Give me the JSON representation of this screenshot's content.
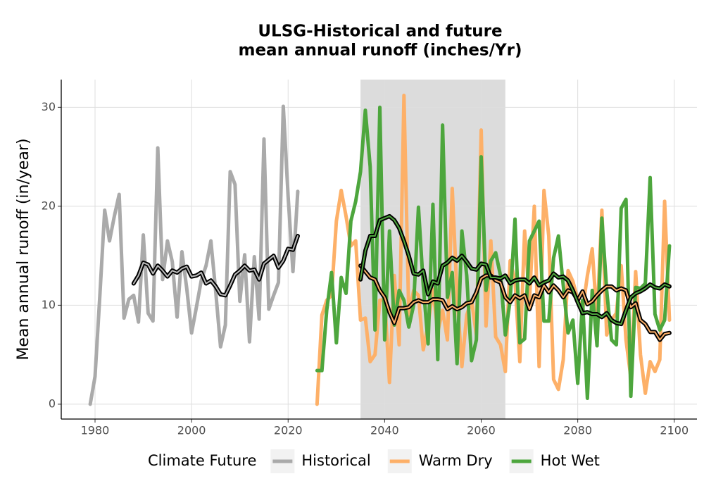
{
  "chart_data": {
    "type": "line",
    "title": "ULSG-Historical and future",
    "subtitle": "mean annual runoff (inches/Yr)",
    "y_label": "Mean annual runoff (in/year)",
    "legend_title": "Climate Future",
    "legend_position": "bottom",
    "grid": true,
    "xlim": [
      1973,
      2104.7
    ],
    "ylim": [
      -1.5,
      32.8
    ],
    "xticks": [
      1980,
      2000,
      2020,
      2040,
      2060,
      2080,
      2100
    ],
    "yticks": [
      0,
      10,
      20,
      30
    ],
    "shaded_span": [
      2035,
      2065
    ],
    "series": [
      {
        "name": "Historical",
        "color": "#aaaaaa",
        "x": [
          1979,
          1980,
          1981,
          1982,
          1983,
          1984,
          1985,
          1986,
          1987,
          1988,
          1989,
          1990,
          1991,
          1992,
          1993,
          1994,
          1995,
          1996,
          1997,
          1998,
          1999,
          2000,
          2001,
          2002,
          2003,
          2004,
          2005,
          2006,
          2007,
          2008,
          2009,
          2010,
          2011,
          2012,
          2013,
          2014,
          2015,
          2016,
          2017,
          2018,
          2019,
          2020,
          2021,
          2022
        ],
        "values": [
          0,
          2.8,
          11,
          19.6,
          16.5,
          19,
          21.2,
          8.7,
          10.6,
          11,
          8.3,
          17.1,
          9.2,
          8.4,
          25.9,
          12.6,
          16.5,
          14.4,
          8.8,
          15.4,
          11.7,
          7.2,
          9.8,
          12.5,
          14,
          16.5,
          11.4,
          5.8,
          8,
          23.5,
          22.2,
          10.4,
          15.1,
          6.3,
          14.9,
          8.6,
          26.8,
          9.6,
          11,
          12.3,
          30.1,
          21,
          13.4,
          21.5
        ]
      },
      {
        "name": "Warm Dry",
        "color": "#fdb068",
        "x": [
          2026,
          2027,
          2028,
          2029,
          2030,
          2031,
          2032,
          2033,
          2034,
          2035,
          2036,
          2037,
          2038,
          2039,
          2040,
          2041,
          2042,
          2043,
          2044,
          2045,
          2046,
          2047,
          2048,
          2049,
          2050,
          2051,
          2052,
          2053,
          2054,
          2055,
          2056,
          2057,
          2058,
          2059,
          2060,
          2061,
          2062,
          2063,
          2064,
          2065,
          2066,
          2067,
          2068,
          2069,
          2070,
          2071,
          2072,
          2073,
          2074,
          2075,
          2076,
          2077,
          2078,
          2079,
          2080,
          2081,
          2082,
          2083,
          2084,
          2085,
          2086,
          2087,
          2088,
          2089,
          2090,
          2091,
          2092,
          2093,
          2094,
          2095,
          2096,
          2097,
          2098,
          2099
        ],
        "values": [
          0,
          9,
          10.5,
          11,
          18.5,
          21.6,
          19,
          16,
          16.5,
          8.5,
          8.7,
          4.3,
          5,
          10.5,
          10.6,
          2.2,
          13,
          6,
          31.2,
          9,
          11.5,
          11,
          5.5,
          8,
          11.6,
          7.3,
          9.5,
          6.5,
          21.8,
          11,
          3.8,
          9,
          10.5,
          7,
          27.7,
          7.9,
          16.5,
          6.8,
          6,
          3.3,
          14.5,
          12.5,
          4.3,
          17.5,
          10.5,
          20,
          3.8,
          21.6,
          17,
          2.5,
          1.5,
          4.5,
          13.5,
          12.4,
          10.6,
          9.5,
          13,
          15.7,
          8.5,
          19.6,
          7,
          8.5,
          9.2,
          14,
          6.5,
          2.7,
          13.4,
          5,
          1.1,
          4.3,
          3.3,
          4.5,
          20.5,
          8.5
        ]
      },
      {
        "name": "Hot Wet",
        "color": "#4da63d",
        "x": [
          2026,
          2027,
          2028,
          2029,
          2030,
          2031,
          2032,
          2033,
          2034,
          2035,
          2036,
          2037,
          2038,
          2039,
          2040,
          2041,
          2042,
          2043,
          2044,
          2045,
          2046,
          2047,
          2048,
          2049,
          2050,
          2051,
          2052,
          2053,
          2054,
          2055,
          2056,
          2057,
          2058,
          2059,
          2060,
          2061,
          2062,
          2063,
          2064,
          2065,
          2066,
          2067,
          2068,
          2069,
          2070,
          2071,
          2072,
          2073,
          2074,
          2075,
          2076,
          2077,
          2078,
          2079,
          2080,
          2081,
          2082,
          2083,
          2084,
          2085,
          2086,
          2087,
          2088,
          2089,
          2090,
          2091,
          2092,
          2093,
          2094,
          2095,
          2096,
          2097,
          2098,
          2099
        ],
        "values": [
          3.4,
          3.4,
          9.5,
          13.3,
          6.2,
          12.8,
          11.2,
          18.5,
          20.5,
          23.5,
          29.7,
          24,
          7.5,
          30,
          6.5,
          17.5,
          8,
          11.5,
          10.5,
          7.8,
          10,
          19.9,
          12,
          6.1,
          20.2,
          4.5,
          28.2,
          10.8,
          13.3,
          4.1,
          17.5,
          13,
          4.4,
          6.5,
          25,
          11.5,
          14.5,
          15.3,
          13,
          7,
          10.5,
          18.7,
          6.2,
          6.6,
          16.5,
          17.5,
          18.5,
          8.4,
          8.4,
          14.8,
          17,
          12,
          7.2,
          8.5,
          2.1,
          10.5,
          0.6,
          11.5,
          5.9,
          18.8,
          11.5,
          6.5,
          6,
          19.8,
          20.7,
          0.8,
          11.8,
          11.7,
          12.2,
          22.9,
          9.1,
          7.5,
          8.5,
          16
        ]
      },
      {
        "color": "#000000",
        "inner_color": "#bbbbbb",
        "x": [
          1988,
          1989,
          1990,
          1991,
          1992,
          1993,
          1994,
          1995,
          1996,
          1997,
          1998,
          1999,
          2000,
          2001,
          2002,
          2003,
          2004,
          2005,
          2006,
          2007,
          2008,
          2009,
          2010,
          2011,
          2012,
          2013,
          2014,
          2015,
          2016,
          2017,
          2018,
          2019,
          2020,
          2021,
          2022
        ],
        "values": [
          12.2,
          13,
          14.3,
          14.1,
          13.2,
          14,
          13.5,
          12.9,
          13.5,
          13.3,
          13.7,
          13.9,
          12.9,
          13,
          13.3,
          12.2,
          12.5,
          11.9,
          11.1,
          11,
          12,
          13.1,
          13.5,
          14,
          13.5,
          13.6,
          12.6,
          14.2,
          14.6,
          15,
          13.8,
          14.5,
          15.7,
          15.6,
          17
        ]
      },
      {
        "color": "#000000",
        "inner_color": "#fdb068",
        "x": [
          2035,
          2036,
          2037,
          2038,
          2039,
          2040,
          2041,
          2042,
          2043,
          2044,
          2045,
          2046,
          2047,
          2048,
          2049,
          2050,
          2051,
          2052,
          2053,
          2054,
          2055,
          2056,
          2057,
          2058,
          2059,
          2060,
          2061,
          2062,
          2063,
          2064,
          2065,
          2066,
          2067,
          2068,
          2069,
          2070,
          2071,
          2072,
          2073,
          2074,
          2075,
          2076,
          2077,
          2078,
          2079,
          2080,
          2081,
          2082,
          2083,
          2084,
          2085,
          2086,
          2087,
          2088,
          2089,
          2090,
          2091,
          2092,
          2093,
          2094,
          2095,
          2096,
          2097,
          2098,
          2099
        ],
        "values": [
          14,
          13.4,
          12.8,
          12.6,
          11.5,
          10.8,
          9.3,
          8.2,
          9.7,
          9.7,
          9.8,
          10.3,
          10.5,
          10.3,
          10.3,
          10.6,
          10.6,
          10.5,
          9.6,
          9.9,
          9.6,
          9.8,
          10.2,
          10.3,
          11.3,
          12.7,
          13,
          13,
          12.5,
          12.3,
          10.8,
          10.3,
          11,
          10.7,
          11,
          9.6,
          11,
          10.8,
          12,
          11.3,
          12,
          11.5,
          10.8,
          11.5,
          11.3,
          10.5,
          11.4,
          10.1,
          10.4,
          11,
          11.5,
          11.9,
          11.9,
          11.5,
          11.7,
          11.5,
          9.8,
          10.2,
          8.5,
          8.1,
          7.3,
          7.3,
          6.5,
          7.1,
          7.2
        ]
      },
      {
        "color": "#000000",
        "inner_color": "#4da63d",
        "x": [
          2035,
          2036,
          2037,
          2038,
          2039,
          2040,
          2041,
          2042,
          2043,
          2044,
          2045,
          2046,
          2047,
          2048,
          2049,
          2050,
          2051,
          2052,
          2053,
          2054,
          2055,
          2056,
          2057,
          2058,
          2059,
          2060,
          2061,
          2062,
          2063,
          2064,
          2065,
          2066,
          2067,
          2068,
          2069,
          2070,
          2071,
          2072,
          2073,
          2074,
          2075,
          2076,
          2077,
          2078,
          2079,
          2080,
          2081,
          2082,
          2083,
          2084,
          2085,
          2086,
          2087,
          2088,
          2089,
          2090,
          2091,
          2092,
          2093,
          2094,
          2095,
          2096,
          2097,
          2098,
          2099
        ],
        "values": [
          12.6,
          15.5,
          17,
          17,
          18.6,
          18.8,
          19,
          18.6,
          17.8,
          16.5,
          15,
          13.2,
          13.1,
          13.5,
          11.1,
          12.4,
          12.2,
          14,
          14.3,
          14.8,
          14.5,
          15,
          14.4,
          13.7,
          13.6,
          14.2,
          14.1,
          12.8,
          12.8,
          12.7,
          13,
          12.2,
          12.5,
          12.6,
          12.6,
          12.2,
          12.8,
          12,
          12.3,
          12.5,
          13.2,
          12.8,
          12.9,
          12.5,
          11.5,
          10.3,
          9.2,
          9.3,
          9.1,
          9.1,
          8.8,
          9.2,
          8.5,
          8.2,
          8.1,
          9.5,
          10.8,
          11.2,
          11.4,
          11.7,
          12.1,
          11.8,
          11.7,
          12.1,
          11.9
        ]
      }
    ]
  }
}
